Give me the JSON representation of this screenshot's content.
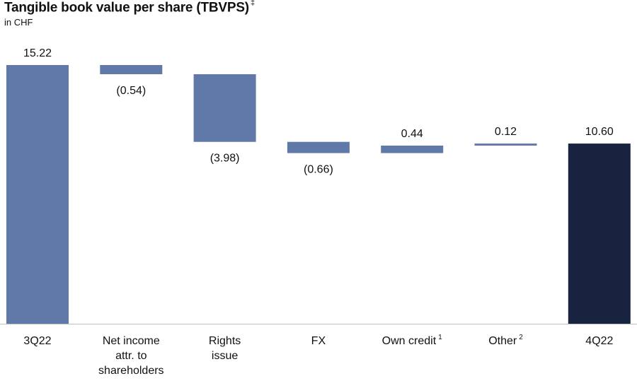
{
  "title": "Tangible book value per share (TBVPS)",
  "title_mark": "‡",
  "subtitle": "in CHF",
  "colors": {
    "step": "#6079a8",
    "total_end": "#17233f",
    "axis": "#bfbfbf"
  },
  "chart_data": {
    "type": "bar",
    "title": "Tangible book value per share (TBVPS)",
    "categories": [
      {
        "lines": [
          "3Q22"
        ],
        "sup": ""
      },
      {
        "lines": [
          "Net income",
          "attr. to",
          "shareholders"
        ],
        "sup": ""
      },
      {
        "lines": [
          "Rights",
          "issue"
        ],
        "sup": ""
      },
      {
        "lines": [
          "FX"
        ],
        "sup": ""
      },
      {
        "lines": [
          "Own credit"
        ],
        "sup": "1"
      },
      {
        "lines": [
          "Other"
        ],
        "sup": "2"
      },
      {
        "lines": [
          "4Q22"
        ],
        "sup": ""
      }
    ],
    "steps": [
      {
        "kind": "total",
        "value": 15.22,
        "label": "15.22"
      },
      {
        "kind": "delta",
        "value": -0.54,
        "label": "(0.54)"
      },
      {
        "kind": "delta",
        "value": -3.98,
        "label": "(3.98)"
      },
      {
        "kind": "delta",
        "value": -0.66,
        "label": "(0.66)"
      },
      {
        "kind": "delta",
        "value": 0.44,
        "label": "0.44"
      },
      {
        "kind": "delta",
        "value": 0.12,
        "label": "0.12"
      },
      {
        "kind": "total_end",
        "value": 10.6,
        "label": "10.60"
      }
    ],
    "ylim": [
      0,
      15.22
    ]
  }
}
